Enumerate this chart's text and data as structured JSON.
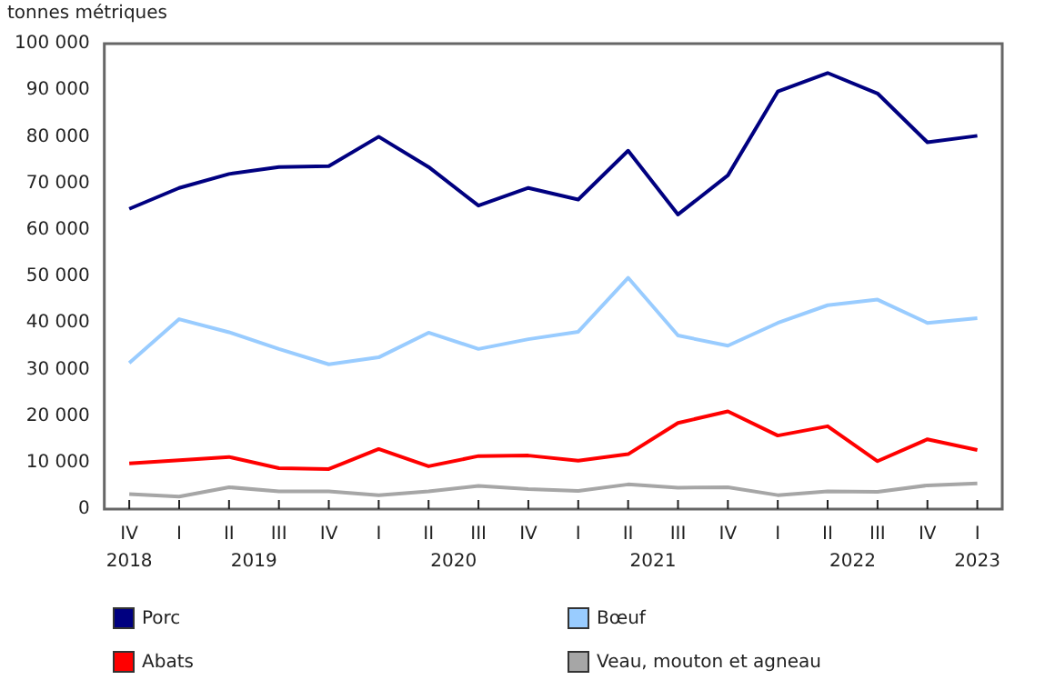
{
  "chart_data": {
    "type": "line",
    "ylabel": "tonnes métriques",
    "categories": [
      "IV",
      "I",
      "II",
      "III",
      "IV",
      "I",
      "II",
      "III",
      "IV",
      "I",
      "II",
      "III",
      "IV",
      "I",
      "II",
      "III",
      "IV",
      "I"
    ],
    "annotations": [
      "2018",
      "2019",
      "2020",
      "2021",
      "2022",
      "2023"
    ],
    "series": [
      {
        "name": "Porc",
        "color": "#000080",
        "values": [
          64500,
          69000,
          72000,
          73500,
          73700,
          80000,
          73500,
          65200,
          69000,
          66500,
          77000,
          63300,
          71700,
          89700,
          93700,
          89300,
          78800,
          80200
        ]
      },
      {
        "name": "Bœuf",
        "color": "#99ccff",
        "values": [
          31400,
          40800,
          38000,
          34400,
          31100,
          32600,
          37900,
          34400,
          36500,
          38100,
          49700,
          37300,
          35100,
          40000,
          43800,
          45000,
          40000,
          41000
        ]
      },
      {
        "name": "Abats",
        "color": "#ff0000",
        "values": [
          9800,
          10500,
          11200,
          8800,
          8600,
          12900,
          9200,
          11400,
          11500,
          10400,
          11800,
          18500,
          21000,
          15800,
          17800,
          10300,
          15000,
          12700
        ]
      },
      {
        "name": "Veau, mouton et agneau",
        "color": "#a6a6a6",
        "values": [
          3200,
          2700,
          4700,
          3800,
          3800,
          3000,
          3800,
          5000,
          4300,
          3900,
          5300,
          4600,
          4700,
          3000,
          3800,
          3700,
          5100,
          5500
        ]
      }
    ],
    "ylim": [
      0,
      100000
    ],
    "yticks": [
      0,
      {
        "value": 10000,
        "label": "10 000"
      },
      {
        "value": 20000,
        "label": "20 000"
      },
      {
        "value": 30000,
        "label": "30 000"
      },
      {
        "value": 40000,
        "label": "40 000"
      },
      {
        "value": 50000,
        "label": "50 000"
      },
      {
        "value": 60000,
        "label": "60 000"
      },
      {
        "value": 70000,
        "label": "70 000"
      },
      {
        "value": 80000,
        "label": "80 000"
      },
      {
        "value": 90000,
        "label": "90 000"
      },
      {
        "value": 100000,
        "label": "100 000"
      }
    ],
    "grid": false,
    "legend": "bottom",
    "marker": "none",
    "line_style": "solid"
  }
}
